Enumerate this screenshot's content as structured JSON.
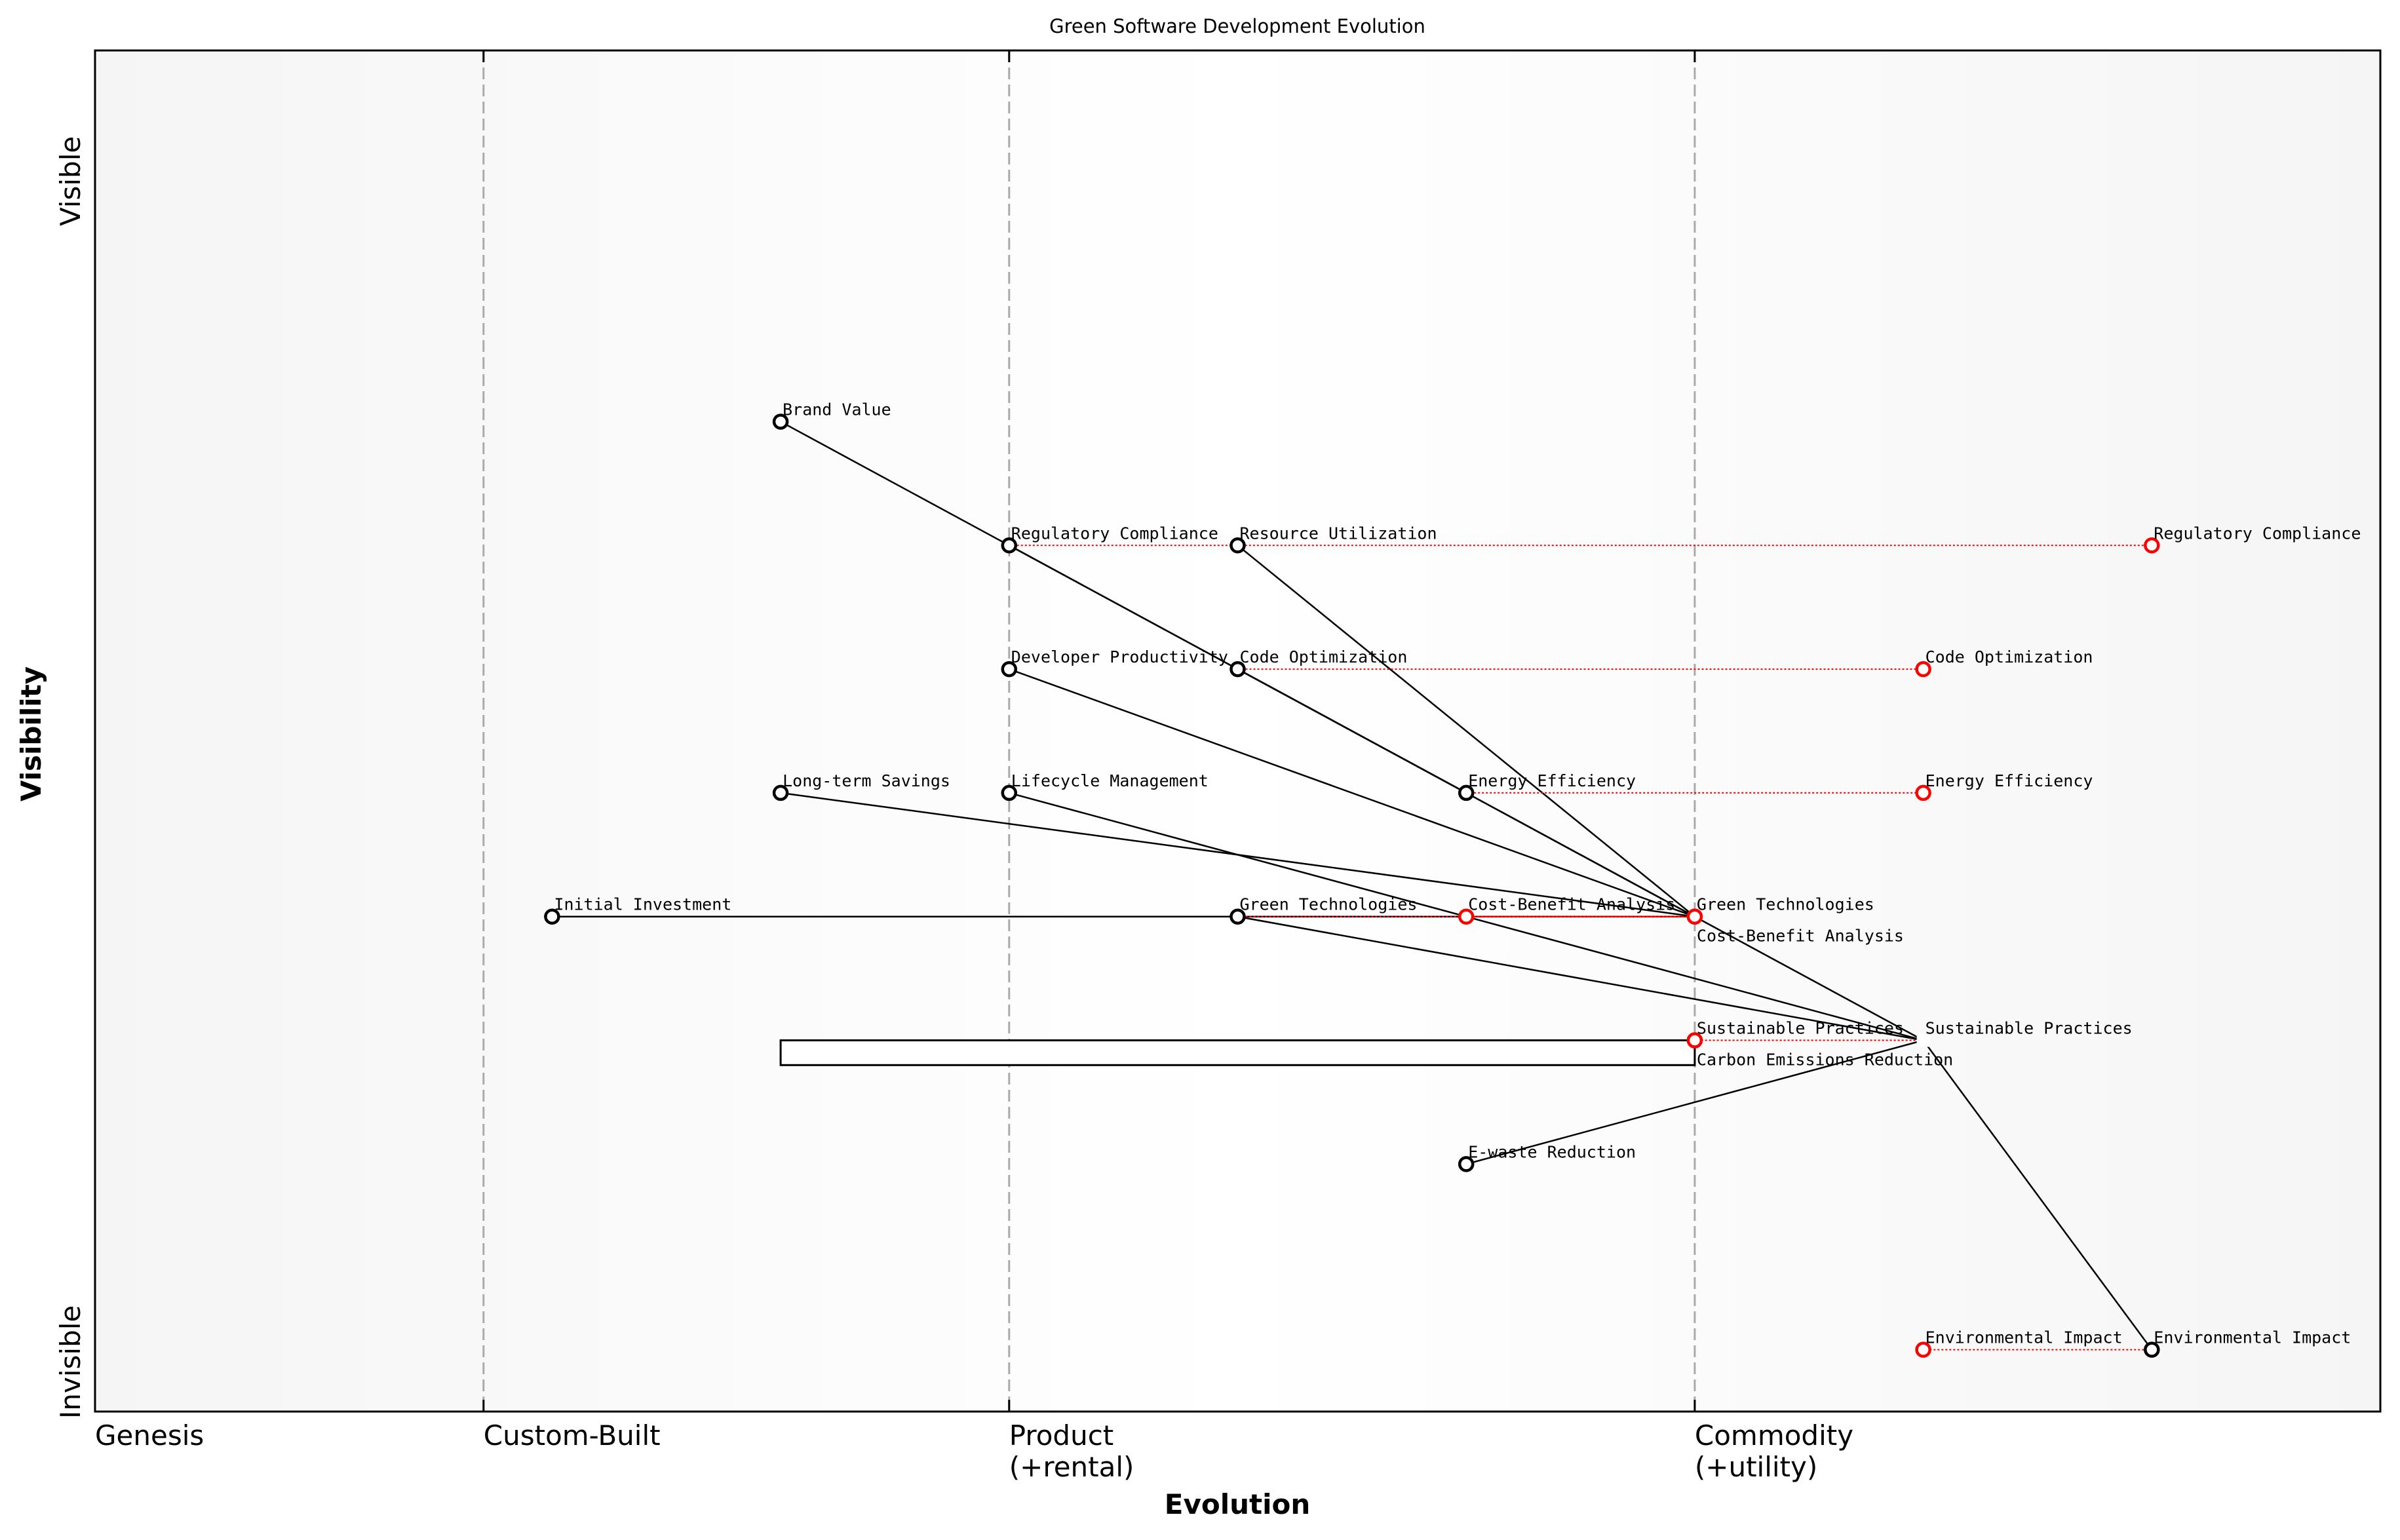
{
  "chart_data": {
    "type": "wardley-map",
    "title": "Green Software Development Evolution",
    "xlabel": "Evolution",
    "ylabel": "Visibility",
    "xlim": [
      0,
      1
    ],
    "ylim": [
      0,
      1.1
    ],
    "y_ends": {
      "top": "Visible",
      "bottom": "Invisible"
    },
    "stages": [
      {
        "label": "Genesis",
        "x": 0.0,
        "line": false
      },
      {
        "label": "Custom-Built",
        "x": 0.17,
        "line": true
      },
      {
        "label": "Product\n(+rental)",
        "x": 0.4,
        "line": true
      },
      {
        "label": "Commodity\n(+utility)",
        "x": 0.7,
        "line": true
      }
    ],
    "colors": {
      "component": "#000000",
      "evolved": "#ff0000",
      "stage_line": "#aaaaaa",
      "bg_edge": "#f5f5f5",
      "bg_mid": "#ffffff"
    },
    "components": [
      {
        "name": "Brand Value",
        "x": 0.3,
        "y": 0.8
      },
      {
        "name": "Regulatory Compliance",
        "x": 0.4,
        "y": 0.7
      },
      {
        "name": "Resource Utilization",
        "x": 0.5,
        "y": 0.7
      },
      {
        "name": "Developer Productivity",
        "x": 0.4,
        "y": 0.6
      },
      {
        "name": "Code Optimization",
        "x": 0.5,
        "y": 0.6
      },
      {
        "name": "Long-term Savings",
        "x": 0.3,
        "y": 0.5
      },
      {
        "name": "Lifecycle Management",
        "x": 0.4,
        "y": 0.5
      },
      {
        "name": "Energy Efficiency",
        "x": 0.6,
        "y": 0.5
      },
      {
        "name": "Initial Investment",
        "x": 0.2,
        "y": 0.4
      },
      {
        "name": "Green Technologies",
        "x": 0.5,
        "y": 0.4
      },
      {
        "name": "Sustainable Practices",
        "x": 0.8,
        "y": 0.3,
        "marker": "square"
      },
      {
        "name": "E-waste Reduction",
        "x": 0.6,
        "y": 0.2
      },
      {
        "name": "Environmental Impact",
        "x": 0.9,
        "y": 0.05
      }
    ],
    "evolved": [
      {
        "name": "Regulatory Compliance",
        "from": 0.4,
        "x": 0.9,
        "y": 0.7
      },
      {
        "name": "Code Optimization",
        "from": 0.5,
        "x": 0.8,
        "y": 0.6
      },
      {
        "name": "Energy Efficiency",
        "from": 0.6,
        "x": 0.8,
        "y": 0.5
      },
      {
        "name": "Cost-Benefit Analysis",
        "from": 0.7,
        "x": 0.6,
        "y": 0.4
      },
      {
        "name": "Green Technologies",
        "from": 0.5,
        "x": 0.7,
        "y": 0.4
      },
      {
        "name": "Cost-Benefit Analysis",
        "from": 0.6,
        "x": 0.7,
        "y": 0.4
      },
      {
        "name": "Carbon Emissions Reduction",
        "from": 0.8,
        "x": 0.7,
        "y": 0.3
      },
      {
        "name": "Sustainable Practices",
        "from": 0.8,
        "x": 0.7,
        "y": 0.3
      },
      {
        "name": "Environmental Impact",
        "from": 0.9,
        "x": 0.8,
        "y": 0.05
      }
    ],
    "links": [
      [
        [
          0.3,
          0.8
        ],
        [
          0.4,
          0.7
        ]
      ],
      [
        [
          0.4,
          0.7
        ],
        [
          0.5,
          0.6
        ]
      ],
      [
        [
          0.5,
          0.6
        ],
        [
          0.6,
          0.5
        ]
      ],
      [
        [
          0.4,
          0.7
        ],
        [
          0.6,
          0.5
        ]
      ],
      [
        [
          0.6,
          0.5
        ],
        [
          0.7,
          0.4
        ]
      ],
      [
        [
          0.5,
          0.6
        ],
        [
          0.7,
          0.4
        ]
      ],
      [
        [
          0.5,
          0.7
        ],
        [
          0.7,
          0.4
        ]
      ],
      [
        [
          0.4,
          0.6
        ],
        [
          0.7,
          0.4
        ]
      ],
      [
        [
          0.3,
          0.5
        ],
        [
          0.7,
          0.4
        ]
      ],
      [
        [
          0.2,
          0.4
        ],
        [
          0.7,
          0.4
        ]
      ],
      [
        [
          0.4,
          0.5
        ],
        [
          0.8,
          0.3
        ]
      ],
      [
        [
          0.5,
          0.4
        ],
        [
          0.8,
          0.3
        ]
      ],
      [
        [
          0.7,
          0.4
        ],
        [
          0.8,
          0.3
        ]
      ],
      [
        [
          0.6,
          0.2
        ],
        [
          0.8,
          0.3
        ]
      ],
      [
        [
          0.8,
          0.3
        ],
        [
          0.9,
          0.05
        ]
      ]
    ],
    "pipeline": {
      "x_start": 0.3,
      "x_end": 0.7,
      "y_top": 0.3,
      "y_bottom": 0.28
    }
  }
}
